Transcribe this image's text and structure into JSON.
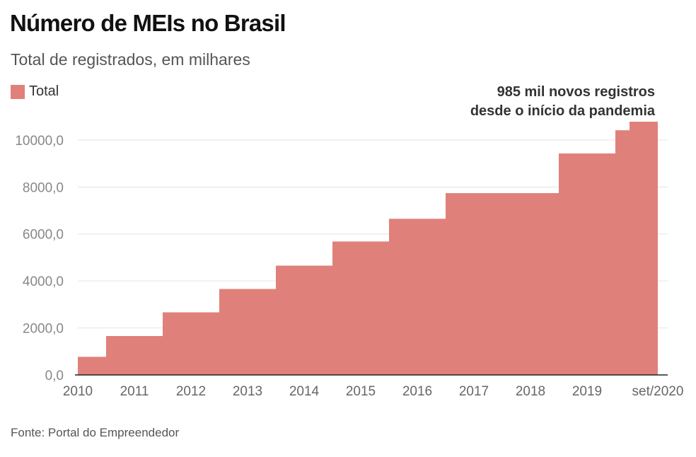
{
  "title": "Número de MEIs no Brasil",
  "subtitle": "Total de registrados, em milhares",
  "legend": {
    "label": "Total",
    "color": "#e0807a"
  },
  "annotation": {
    "line1": "985 mil novos registros",
    "line2": "desde o início da pandemia"
  },
  "source": "Fonte: Portal do Empreendedor",
  "chart_data": {
    "type": "area",
    "step": true,
    "categories": [
      "2010",
      "2011",
      "2012",
      "2013",
      "2014",
      "2015",
      "2016",
      "2017",
      "2018",
      "2019",
      "set/2020"
    ],
    "series": [
      {
        "name": "Total",
        "color": "#e0807a",
        "values": [
          771,
          1656,
          2666,
          3659,
          4653,
          5680,
          6649,
          7739,
          7739,
          9430,
          10415,
          10780
        ]
      }
    ],
    "x_values": [
      2010,
      2010.5,
      2011.5,
      2012.5,
      2013.5,
      2014.5,
      2015.5,
      2016.5,
      2017.5,
      2018.5,
      2019.5,
      2019.75
    ],
    "x_end": 2020.25,
    "yticks": [
      "0,0",
      "2000,0",
      "4000,0",
      "6000,0",
      "8000,0",
      "10000,0"
    ],
    "ytick_values": [
      0,
      2000,
      4000,
      6000,
      8000,
      10000
    ],
    "ylim": [
      0,
      10780
    ],
    "grid": true
  }
}
